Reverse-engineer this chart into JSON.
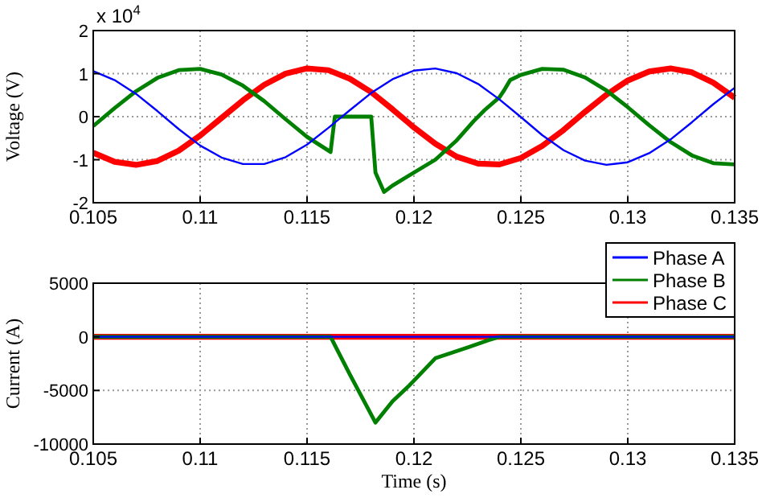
{
  "chart_data": [
    {
      "type": "line",
      "ylabel": "Voltage (V)",
      "annotations": [
        "x 10$^{4}$"
      ],
      "x": [
        0.105,
        0.106,
        0.107,
        0.108,
        0.109,
        0.11,
        0.111,
        0.112,
        0.113,
        0.114,
        0.115,
        0.116,
        0.117,
        0.118,
        0.119,
        0.12,
        0.121,
        0.122,
        0.123,
        0.124,
        0.125,
        0.126,
        0.127,
        0.128,
        0.129,
        0.13,
        0.131,
        0.132,
        0.133,
        0.134,
        0.135
      ],
      "xlim": [
        0.105,
        0.135
      ],
      "xticks": [
        0.105,
        0.11,
        0.115,
        0.12,
        0.125,
        0.13,
        0.135
      ],
      "ylim": [
        -2,
        2
      ],
      "yticks": [
        -2,
        -1,
        0,
        1,
        2
      ],
      "grid": true,
      "line_style": "solid",
      "series": [
        {
          "color": "#0000ff",
          "values": [
            1.06,
            0.85,
            0.53,
            0.13,
            -0.29,
            -0.67,
            -0.95,
            -1.1,
            -1.1,
            -0.94,
            -0.65,
            -0.26,
            0.15,
            0.55,
            0.87,
            1.07,
            1.12,
            1.01,
            0.76,
            0.4,
            -0.01,
            -0.43,
            -0.78,
            -1.02,
            -1.12,
            -1.06,
            -0.85,
            -0.53,
            -0.13,
            0.29,
            0.67
          ]
        },
        {
          "color": "#008000",
          "x": [
            0.105,
            0.106,
            0.107,
            0.108,
            0.109,
            0.11,
            0.111,
            0.112,
            0.113,
            0.114,
            0.115,
            0.1161,
            0.1163,
            0.118,
            0.1182,
            0.1186,
            0.119,
            0.12,
            0.121,
            0.122,
            0.1228,
            0.1233,
            0.124,
            0.1242,
            0.1245,
            0.125,
            0.126,
            0.127,
            0.128,
            0.129,
            0.13,
            0.131,
            0.132,
            0.133,
            0.134,
            0.135
          ],
          "values": [
            -0.22,
            0.2,
            0.59,
            0.9,
            1.08,
            1.11,
            0.98,
            0.72,
            0.36,
            -0.06,
            -0.47,
            -0.82,
            0,
            0,
            -1.3,
            -1.75,
            -1.6,
            -1.3,
            -1.0,
            -0.55,
            -0.1,
            0.15,
            0.45,
            0.6,
            0.85,
            0.97,
            1.11,
            1.09,
            0.91,
            0.61,
            0.22,
            -0.2,
            -0.59,
            -0.9,
            -1.08,
            -1.11
          ]
        },
        {
          "color": "#ff0000",
          "values": [
            -0.84,
            -1.05,
            -1.12,
            -1.03,
            -0.79,
            -0.44,
            -0.03,
            0.38,
            0.74,
            1.0,
            1.12,
            1.08,
            0.88,
            0.57,
            0.17,
            -0.25,
            -0.63,
            -0.93,
            -1.09,
            -1.11,
            -0.96,
            -0.68,
            -0.31,
            0.11,
            0.51,
            0.84,
            1.05,
            1.12,
            1.03,
            0.79,
            0.44
          ]
        }
      ]
    },
    {
      "type": "line",
      "xlabel": "Time (s)",
      "ylabel": "Current (A)",
      "x": [
        0.105,
        0.135
      ],
      "xlim": [
        0.105,
        0.135
      ],
      "xticks": [
        0.105,
        0.11,
        0.115,
        0.12,
        0.125,
        0.13,
        0.135
      ],
      "ylim": [
        -10000,
        5000
      ],
      "yticks": [
        -10000,
        -5000,
        0,
        5000
      ],
      "grid": true,
      "legend": "top right",
      "line_style": "solid",
      "series": [
        {
          "name": "Phase A",
          "color": "#0000ff",
          "values": [
            0,
            0
          ]
        },
        {
          "name": "Phase B",
          "color": "#008000",
          "x": [
            0.105,
            0.1161,
            0.117,
            0.1182,
            0.119,
            0.1198,
            0.121,
            0.1225,
            0.1235,
            0.124,
            0.135
          ],
          "values": [
            0,
            0,
            -3500,
            -8000,
            -6000,
            -4500,
            -2000,
            -1000,
            -300,
            0,
            0
          ]
        },
        {
          "name": "Phase C",
          "color": "#ff0000",
          "values": [
            0,
            0
          ]
        }
      ]
    }
  ]
}
